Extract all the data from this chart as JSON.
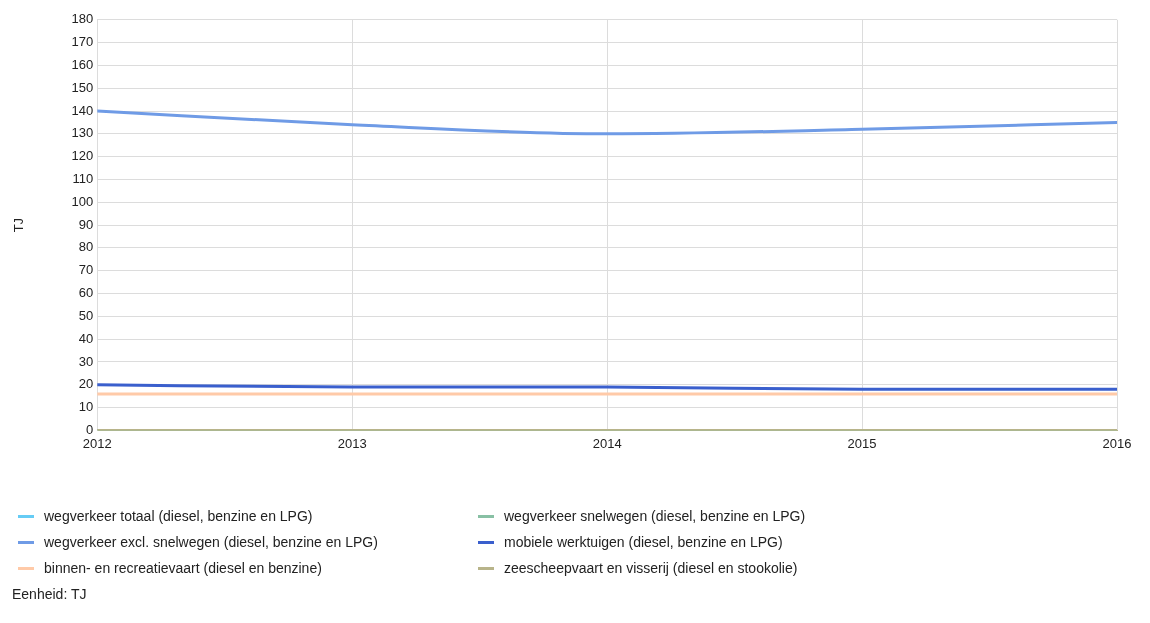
{
  "chart_data": {
    "type": "line",
    "ylabel": "TJ",
    "x": [
      2012,
      2013,
      2014,
      2015,
      2016
    ],
    "xlim": [
      2012,
      2016
    ],
    "xticks": [
      2012,
      2013,
      2014,
      2015,
      2016
    ],
    "ylim": [
      0,
      180
    ],
    "yticks": [
      0,
      10,
      20,
      30,
      40,
      50,
      60,
      70,
      80,
      90,
      100,
      110,
      120,
      130,
      140,
      150,
      160,
      170,
      180
    ],
    "grid": true,
    "legend": "bottom",
    "marker": "none",
    "series": [
      {
        "name": "wegverkeer totaal (diesel, benzine en LPG)",
        "color": "#66ccf5",
        "values": [
          null,
          null,
          null,
          null,
          null
        ]
      },
      {
        "name": "wegverkeer snelwegen (diesel, benzine en LPG)",
        "color": "#88c0a4",
        "values": [
          0,
          0,
          0,
          0,
          0
        ]
      },
      {
        "name": "wegverkeer excl. snelwegen (diesel, benzine en LPG)",
        "color": "#6f9be6",
        "values": [
          140,
          134,
          130,
          132,
          135
        ]
      },
      {
        "name": "mobiele werktuigen (diesel, benzine en LPG)",
        "color": "#3a5fcd",
        "values": [
          20,
          19,
          19,
          18,
          18
        ]
      },
      {
        "name": "binnen- en recreatievaart (diesel en benzine)",
        "color": "#ffcaa8",
        "values": [
          16,
          16,
          16,
          16,
          16
        ]
      },
      {
        "name": "zeescheepvaart en visserij (diesel en stookolie)",
        "color": "#b8b48a",
        "values": [
          0,
          0,
          0,
          0,
          0
        ]
      }
    ],
    "annotations": [
      "Eenheid: TJ"
    ]
  }
}
